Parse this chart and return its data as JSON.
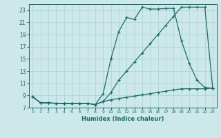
{
  "xlabel": "Humidex (Indice chaleur)",
  "bg_color": "#cce8e8",
  "grid_color": "#b0d4d4",
  "line_color": "#1a6b6b",
  "xlim": [
    -0.5,
    23.5
  ],
  "ylim": [
    7,
    24
  ],
  "xticks": [
    0,
    1,
    2,
    3,
    4,
    5,
    6,
    7,
    8,
    9,
    10,
    11,
    12,
    13,
    14,
    15,
    16,
    17,
    18,
    19,
    20,
    21,
    22,
    23
  ],
  "yticks": [
    7,
    9,
    11,
    13,
    15,
    17,
    19,
    21,
    23
  ],
  "series1_x": [
    0,
    1,
    2,
    3,
    4,
    5,
    6,
    7,
    8,
    9,
    10,
    11,
    12,
    13,
    14,
    15,
    16,
    17,
    18,
    19,
    20,
    21,
    22,
    23
  ],
  "series1_y": [
    8.8,
    7.8,
    7.8,
    7.7,
    7.7,
    7.7,
    7.7,
    7.7,
    7.5,
    9.3,
    15.0,
    19.5,
    21.8,
    21.5,
    23.5,
    23.2,
    23.2,
    23.3,
    23.3,
    18.0,
    14.3,
    11.5,
    10.3,
    10.2
  ],
  "series2_x": [
    0,
    1,
    2,
    3,
    4,
    5,
    6,
    7,
    8,
    9,
    10,
    11,
    12,
    13,
    14,
    15,
    16,
    17,
    18,
    19,
    20,
    21,
    22,
    23
  ],
  "series2_y": [
    8.8,
    7.8,
    7.8,
    7.7,
    7.7,
    7.7,
    7.7,
    7.7,
    7.5,
    8.0,
    9.5,
    11.5,
    13.0,
    14.5,
    16.0,
    17.5,
    19.0,
    20.5,
    22.0,
    23.5,
    23.5,
    23.5,
    23.5,
    10.2
  ],
  "series3_x": [
    0,
    1,
    2,
    3,
    4,
    5,
    6,
    7,
    8,
    9,
    10,
    11,
    12,
    13,
    14,
    15,
    16,
    17,
    18,
    19,
    20,
    21,
    22,
    23
  ],
  "series3_y": [
    8.8,
    7.8,
    7.8,
    7.7,
    7.7,
    7.7,
    7.7,
    7.7,
    7.5,
    8.0,
    8.3,
    8.5,
    8.7,
    8.9,
    9.1,
    9.3,
    9.5,
    9.7,
    9.9,
    10.1,
    10.1,
    10.1,
    10.1,
    10.2
  ]
}
